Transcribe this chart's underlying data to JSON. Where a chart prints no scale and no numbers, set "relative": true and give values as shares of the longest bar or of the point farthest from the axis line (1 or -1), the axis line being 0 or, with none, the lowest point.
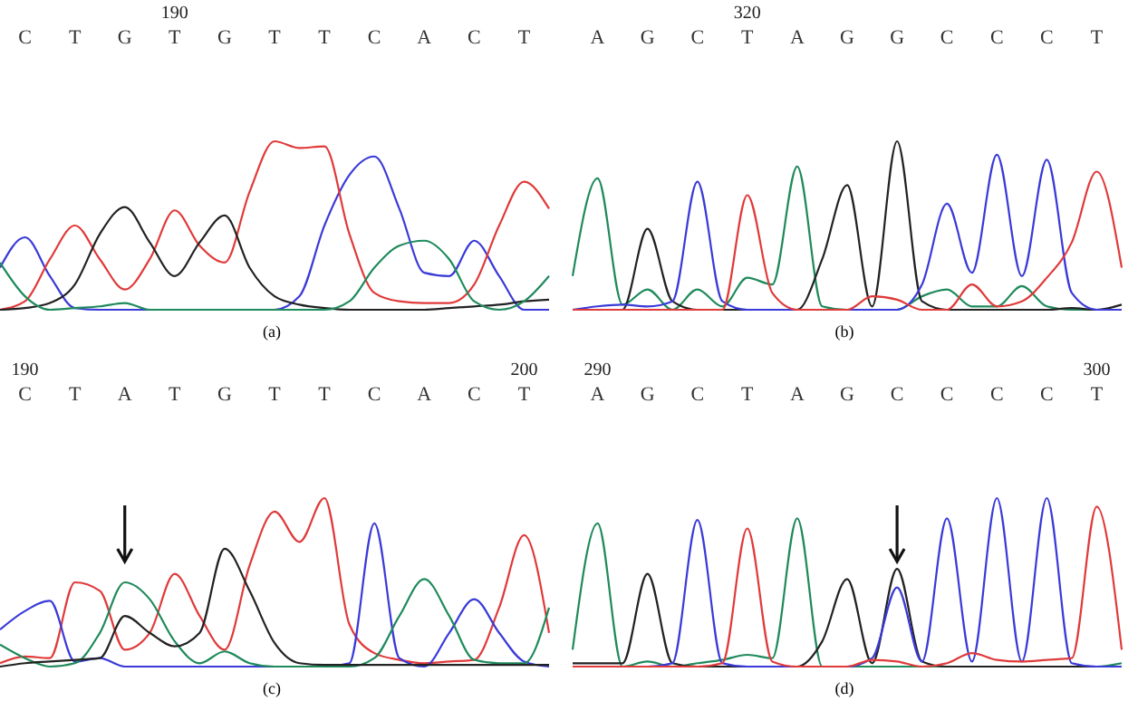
{
  "chart_data": [
    {
      "type": "line",
      "relative": true,
      "xlabel": "(a)",
      "categories": [
        null,
        "C",
        null,
        "T",
        null,
        "G",
        null,
        "T",
        null,
        "G",
        null,
        "T",
        null,
        "T",
        null,
        "C",
        null,
        "A",
        null,
        "C",
        null,
        "T",
        null
      ],
      "annotations": [
        "190"
      ],
      "series": [
        {
          "color": "#3a3ad8",
          "values": [
            0.25,
            0.43,
            0.2,
            0.01,
            0,
            0,
            0,
            0,
            0,
            0,
            0,
            0,
            0.08,
            0.5,
            0.8,
            0.91,
            0.6,
            0.22,
            0.2,
            0.41,
            0.2,
            0,
            0
          ]
        },
        {
          "color": "#e03a3a",
          "values": [
            0,
            0.05,
            0.3,
            0.5,
            0.3,
            0.12,
            0.3,
            0.59,
            0.38,
            0.28,
            0.7,
            1,
            0.96,
            0.97,
            0.45,
            0.1,
            0.05,
            0.04,
            0.04,
            0.15,
            0.5,
            0.76,
            0.6
          ]
        },
        {
          "color": "#222222",
          "values": [
            0,
            0.01,
            0.04,
            0.15,
            0.45,
            0.61,
            0.4,
            0.2,
            0.4,
            0.56,
            0.25,
            0.08,
            0.03,
            0.01,
            0,
            0,
            0,
            0,
            0.01,
            0.02,
            0.03,
            0.05,
            0.06
          ]
        },
        {
          "color": "#1f8a5c",
          "values": [
            0.28,
            0.08,
            0,
            0.01,
            0.02,
            0.04,
            0,
            0,
            0,
            0,
            0,
            0,
            0,
            0,
            0.05,
            0.25,
            0.38,
            0.41,
            0.3,
            0.05,
            0,
            0.05,
            0.2
          ]
        }
      ]
    },
    {
      "type": "line",
      "relative": true,
      "xlabel": "(b)",
      "categories": [
        null,
        "A",
        null,
        "G",
        null,
        "C",
        null,
        "T",
        null,
        "A",
        null,
        "G",
        null,
        "G",
        null,
        "C",
        null,
        "C",
        null,
        "C",
        null,
        "T",
        null
      ],
      "annotations": [
        "320"
      ],
      "series": [
        {
          "color": "#1f8a5c",
          "values": [
            0.2,
            0.78,
            0.03,
            0.12,
            0,
            0.12,
            0.02,
            0.19,
            0.15,
            0.85,
            0.02,
            0,
            0,
            0,
            0.08,
            0.12,
            0.02,
            0.02,
            0.14,
            0.02,
            0,
            0,
            0
          ]
        },
        {
          "color": "#222222",
          "values": [
            0,
            0,
            0,
            0.48,
            0.05,
            0,
            0,
            0,
            0,
            0,
            0.3,
            0.74,
            0.02,
            1,
            0.05,
            0,
            0,
            0,
            0,
            0,
            0.01,
            0,
            0.03
          ]
        },
        {
          "color": "#3a3ad8",
          "values": [
            0,
            0.02,
            0.03,
            0.02,
            0.05,
            0.76,
            0.05,
            0,
            0,
            0,
            0,
            0,
            0,
            0,
            0.15,
            0.63,
            0.22,
            0.92,
            0.2,
            0.89,
            0.1,
            0,
            0
          ]
        },
        {
          "color": "#e03a3a",
          "values": [
            0,
            0,
            0,
            0,
            0,
            0,
            0,
            0.68,
            0.1,
            0,
            0,
            0,
            0.08,
            0.06,
            0,
            0,
            0.15,
            0.02,
            0.05,
            0.19,
            0.4,
            0.82,
            0.25
          ]
        }
      ]
    },
    {
      "type": "line",
      "relative": true,
      "xlabel": "(c)",
      "categories": [
        null,
        "C",
        null,
        "T",
        null,
        "A",
        null,
        "T",
        null,
        "G",
        null,
        "T",
        null,
        "T",
        null,
        "C",
        null,
        "A",
        null,
        "C",
        null,
        "T",
        null
      ],
      "annotations": [
        "190",
        "200"
      ],
      "series": [
        {
          "color": "#e03a3a",
          "values": [
            0.02,
            0.06,
            0.05,
            0.5,
            0.45,
            0.1,
            0.2,
            0.55,
            0.3,
            0.1,
            0.6,
            0.92,
            0.74,
            1,
            0.25,
            0.08,
            0.04,
            0.02,
            0.03,
            0.04,
            0.35,
            0.78,
            0.2
          ]
        },
        {
          "color": "#3a3ad8",
          "values": [
            0.22,
            0.33,
            0.39,
            0.03,
            0.05,
            0,
            0,
            0,
            0,
            0,
            0,
            0,
            0,
            0,
            0.02,
            0.85,
            0.05,
            0,
            0.2,
            0.4,
            0.2,
            0.03,
            0
          ]
        },
        {
          "color": "#1f8a5c",
          "values": [
            0.13,
            0.05,
            0,
            0.02,
            0.2,
            0.5,
            0.4,
            0.15,
            0.02,
            0.09,
            0.02,
            0,
            0,
            0,
            0,
            0.05,
            0.3,
            0.52,
            0.3,
            0.04,
            0.02,
            0.02,
            0.35
          ]
        },
        {
          "color": "#222222",
          "values": [
            0,
            0.02,
            0.03,
            0.04,
            0.05,
            0.3,
            0.2,
            0.12,
            0.2,
            0.7,
            0.45,
            0.14,
            0.02,
            0.01,
            0.01,
            0.01,
            0.01,
            0.01,
            0.01,
            0.01,
            0.01,
            0.01,
            0.01
          ]
        }
      ]
    },
    {
      "type": "line",
      "relative": true,
      "xlabel": "(d)",
      "categories": [
        null,
        "A",
        null,
        "G",
        null,
        "C",
        null,
        "T",
        null,
        "A",
        null,
        "G",
        null,
        "C",
        null,
        "C",
        null,
        "C",
        null,
        "C",
        null,
        "T",
        null
      ],
      "annotations": [
        "290",
        "300"
      ],
      "series": [
        {
          "color": "#1f8a5c",
          "values": [
            0.1,
            0.85,
            0,
            0.03,
            0,
            0.02,
            0.04,
            0.07,
            0.05,
            0.88,
            0,
            0,
            0,
            0,
            0,
            0,
            0,
            0,
            0,
            0,
            0,
            0,
            0.02
          ]
        },
        {
          "color": "#222222",
          "values": [
            0.02,
            0.02,
            0.02,
            0.55,
            0.02,
            0,
            0,
            0,
            0,
            0,
            0.15,
            0.52,
            0.02,
            0.58,
            0.03,
            0,
            0,
            0,
            0,
            0,
            0,
            0,
            0
          ]
        },
        {
          "color": "#3a3ad8",
          "values": [
            null,
            null,
            0,
            0,
            0.02,
            0.87,
            0.02,
            0,
            0,
            0,
            0,
            0,
            0.05,
            0.47,
            0.03,
            0.88,
            0.03,
            1,
            0.03,
            1,
            0.02,
            0,
            0
          ]
        },
        {
          "color": "#e03a3a",
          "values": [
            0,
            0,
            0,
            0,
            0,
            0,
            0.02,
            0.82,
            0.03,
            0,
            0,
            0,
            0.04,
            0.03,
            0,
            0.02,
            0.08,
            0.04,
            0.03,
            0.04,
            0.05,
            0.95,
            0.1
          ]
        }
      ]
    }
  ]
}
